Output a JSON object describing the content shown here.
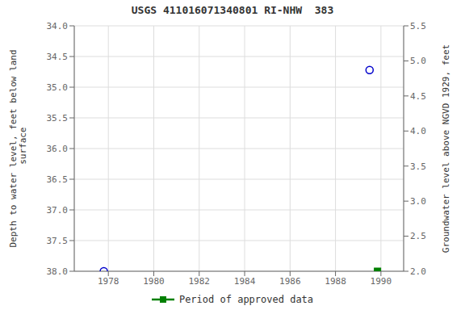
{
  "chart_data": {
    "type": "scatter",
    "title": "USGS 411016071340801 RI-NHW  383",
    "ylabel": "Depth to water level, feet below land\n surface",
    "y2label": "Groundwater level above NGVD 1929, feet",
    "xlim": [
      1976.5,
      1991.0
    ],
    "xticks": [
      1978,
      1980,
      1982,
      1984,
      1986,
      1988,
      1990
    ],
    "ylim": [
      38.0,
      34.0
    ],
    "yticks": [
      {
        "value": 34.0,
        "label": "34.0"
      },
      34.5,
      {
        "value": 35.0,
        "label": "35.0"
      },
      35.5,
      {
        "value": 36.0,
        "label": "36.0"
      },
      36.5,
      {
        "value": 37.0,
        "label": "37.0"
      },
      37.5,
      {
        "value": 38.0,
        "label": "38.0"
      }
    ],
    "y2lim": [
      2.0,
      5.5
    ],
    "y2ticks": [
      {
        "value": 2.0,
        "label": "2.0"
      },
      2.5,
      {
        "value": 3.0,
        "label": "3.0"
      },
      3.5,
      {
        "value": 4.0,
        "label": "4.0"
      },
      4.5,
      {
        "value": 5.0,
        "label": "5.0"
      },
      5.5
    ],
    "grid": true,
    "legend": "bottom",
    "series": [
      {
        "color": "#0000cc",
        "marker": "open_circle",
        "x": [
          1977.8,
          1989.5
        ],
        "values": [
          38.0,
          34.72
        ]
      },
      {
        "name": "Period of approved data",
        "color": "#008000",
        "marker": "square",
        "x": [
          1989.85
        ],
        "values": [
          38.0
        ]
      }
    ]
  }
}
